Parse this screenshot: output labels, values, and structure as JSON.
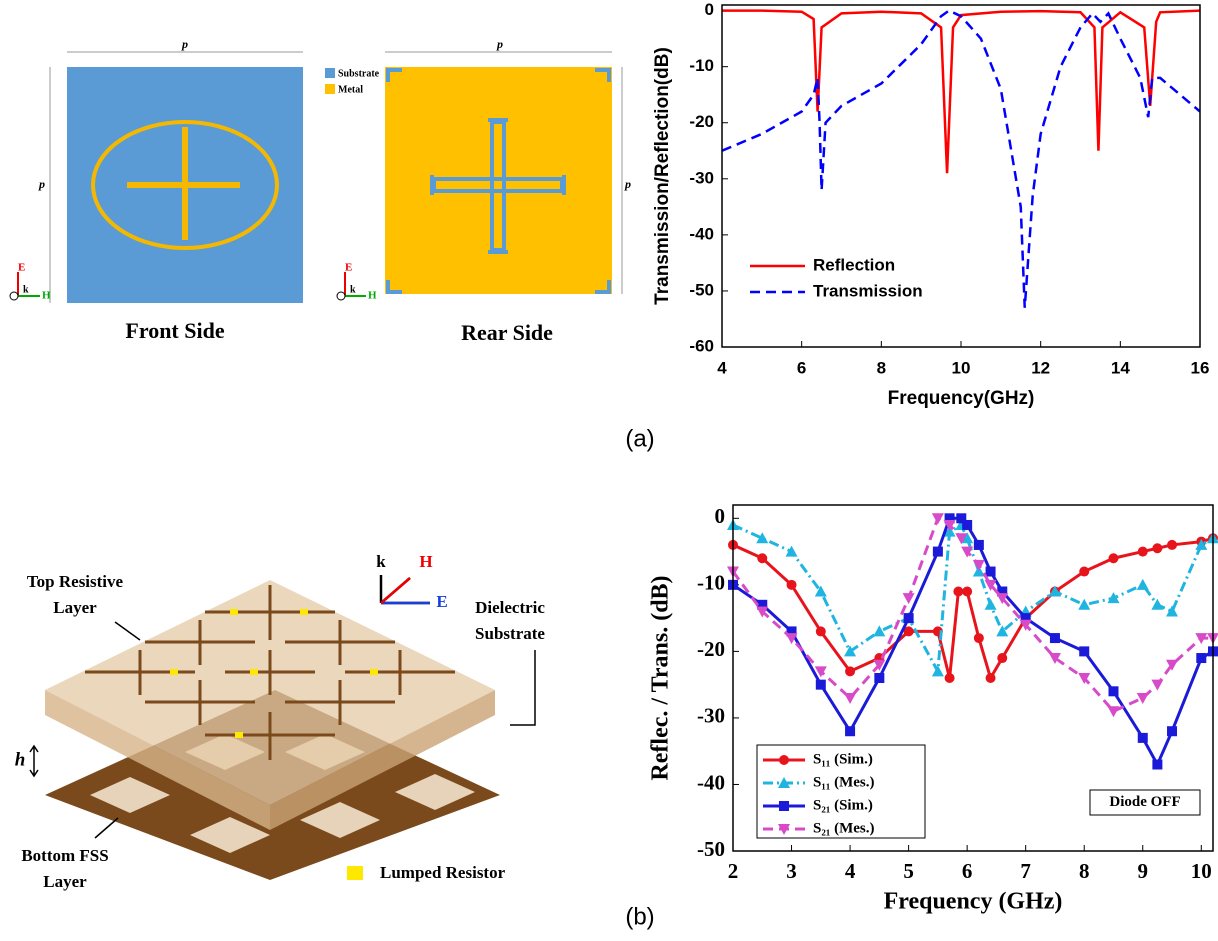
{
  "figure": {
    "panel_a": {
      "front_label": "Front Side",
      "rear_label": "Rear Side",
      "caption": "(a)",
      "dim_p": "p",
      "legend_substrate": "Substrate",
      "legend_metal": "Metal",
      "axis_e": "E",
      "axis_k": "k",
      "axis_h": "H"
    },
    "panel_b": {
      "caption": "(b)",
      "top_layer": [
        "Top Resistive",
        "Layer"
      ],
      "substrate": [
        "Dielectric",
        "Substrate"
      ],
      "thickness": "h",
      "bottom_layer": [
        "Bottom FSS",
        "Layer"
      ],
      "resistor": "Lumped Resistor",
      "axis_k": "k",
      "axis_h": "H",
      "axis_e": "E"
    }
  },
  "chart_data": [
    {
      "type": "line",
      "xlabel": "Frequency(GHz)",
      "ylabel": "Transmission/Reflection(dB)",
      "xlim": [
        4,
        16
      ],
      "xticks": [
        4,
        6,
        8,
        10,
        12,
        14,
        16
      ],
      "ylim": [
        -60,
        1
      ],
      "yticks": [
        0,
        -10,
        -20,
        -30,
        -40,
        -50,
        -60
      ],
      "legend": "lower left",
      "legend_box": false,
      "series": [
        {
          "name": "Reflection",
          "color": "#ff0000",
          "linestyle": "solid",
          "x": [
            4,
            5,
            6,
            6.3,
            6.4,
            6.5,
            7,
            8,
            9,
            9.5,
            9.65,
            9.8,
            10,
            11,
            12,
            13,
            13.35,
            13.45,
            13.55,
            14,
            14.6,
            14.75,
            14.9,
            15,
            16
          ],
          "values": [
            0,
            0,
            -0.2,
            -1.5,
            -18,
            -3,
            -0.5,
            -0.2,
            -0.5,
            -3,
            -29,
            -3,
            -0.8,
            -0.2,
            -0.1,
            -0.3,
            -3,
            -25,
            -3,
            -0.3,
            -3,
            -17,
            -2,
            -0.3,
            0
          ]
        },
        {
          "name": "Transmission",
          "color": "#0000ff",
          "linestyle": "dashed",
          "x": [
            4,
            5,
            6,
            6.3,
            6.4,
            6.45,
            6.5,
            6.6,
            7,
            8,
            9,
            9.5,
            9.7,
            10,
            10.5,
            11,
            11.5,
            11.6,
            11.8,
            12,
            12.5,
            13,
            13.3,
            13.5,
            13.7,
            14,
            14.5,
            14.7,
            14.8,
            15,
            16
          ],
          "values": [
            -25,
            -22,
            -18,
            -15,
            -12,
            -20,
            -32,
            -20,
            -17,
            -13,
            -6,
            -1,
            0,
            -1,
            -5,
            -14,
            -35,
            -53,
            -33,
            -22,
            -10,
            -3,
            -0.5,
            -2,
            -0.5,
            -5,
            -12,
            -19,
            -12,
            -12,
            -18
          ]
        }
      ]
    },
    {
      "type": "line",
      "xlabel": "Frequency (GHz)",
      "ylabel": "Reflec. / Trans. (dB)",
      "annotation": "Diode OFF",
      "xlim": [
        2,
        10.2
      ],
      "xticks": [
        2,
        3,
        4,
        5,
        6,
        7,
        8,
        9,
        10
      ],
      "ylim": [
        -50,
        2
      ],
      "yticks": [
        0,
        -10,
        -20,
        -30,
        -40,
        -50
      ],
      "legend": "lower left",
      "legend_box": true,
      "series": [
        {
          "name": "S₁₁ (Sim.)",
          "color": "#e8141c",
          "linestyle": "solid",
          "marker": "circle",
          "x": [
            2,
            2.5,
            3,
            3.5,
            4,
            4.5,
            5,
            5.5,
            5.7,
            5.85,
            6,
            6.2,
            6.4,
            6.6,
            7,
            7.5,
            8,
            8.5,
            9,
            9.25,
            9.5,
            10,
            10.2
          ],
          "values": [
            -4,
            -6,
            -10,
            -17,
            -23,
            -21,
            -17,
            -17,
            -24,
            -11,
            -11,
            -18,
            -24,
            -21,
            -15,
            -11,
            -8,
            -6,
            -5,
            -4.5,
            -4,
            -3.5,
            -3
          ]
        },
        {
          "name": "S₁₁ (Mes.)",
          "color": "#1fb5e0",
          "linestyle": "dashdot",
          "marker": "triangle-up",
          "x": [
            2,
            2.5,
            3,
            3.5,
            4,
            4.5,
            5,
            5.5,
            5.7,
            5.9,
            6,
            6.2,
            6.4,
            6.6,
            7,
            7.5,
            8,
            8.5,
            9,
            9.25,
            9.5,
            10,
            10.2
          ],
          "values": [
            -1,
            -3,
            -5,
            -11,
            -20,
            -17,
            -15,
            -23,
            -2,
            -1,
            -3,
            -8,
            -13,
            -17,
            -14,
            -11,
            -13,
            -12,
            -10,
            -13,
            -14,
            -4,
            -3
          ]
        },
        {
          "name": "S₂₁ (Sim.)",
          "color": "#1a1ad8",
          "linestyle": "solid",
          "marker": "square",
          "x": [
            2,
            2.5,
            3,
            3.5,
            4,
            4.5,
            5,
            5.5,
            5.7,
            5.9,
            6,
            6.2,
            6.4,
            6.6,
            7,
            7.5,
            8,
            8.5,
            9,
            9.25,
            9.5,
            10,
            10.2
          ],
          "values": [
            -10,
            -13,
            -17,
            -25,
            -32,
            -24,
            -15,
            -5,
            0,
            0,
            -1,
            -4,
            -8,
            -11,
            -15,
            -18,
            -20,
            -26,
            -33,
            -37,
            -32,
            -21,
            -20
          ]
        },
        {
          "name": "S₂₁ (Mes.)",
          "color": "#d84bc8",
          "linestyle": "dashed",
          "marker": "triangle-down",
          "x": [
            2,
            2.5,
            3,
            3.5,
            4,
            4.5,
            5,
            5.5,
            5.7,
            5.9,
            6,
            6.2,
            6.4,
            6.6,
            7,
            7.5,
            8,
            8.5,
            9,
            9.25,
            9.5,
            10,
            10.2
          ],
          "values": [
            -8,
            -14,
            -18,
            -23,
            -27,
            -22,
            -12,
            0,
            -1,
            -3,
            -5,
            -7,
            -10,
            -12,
            -16,
            -21,
            -24,
            -29,
            -27,
            -25,
            -22,
            -18,
            -18
          ]
        }
      ]
    }
  ]
}
